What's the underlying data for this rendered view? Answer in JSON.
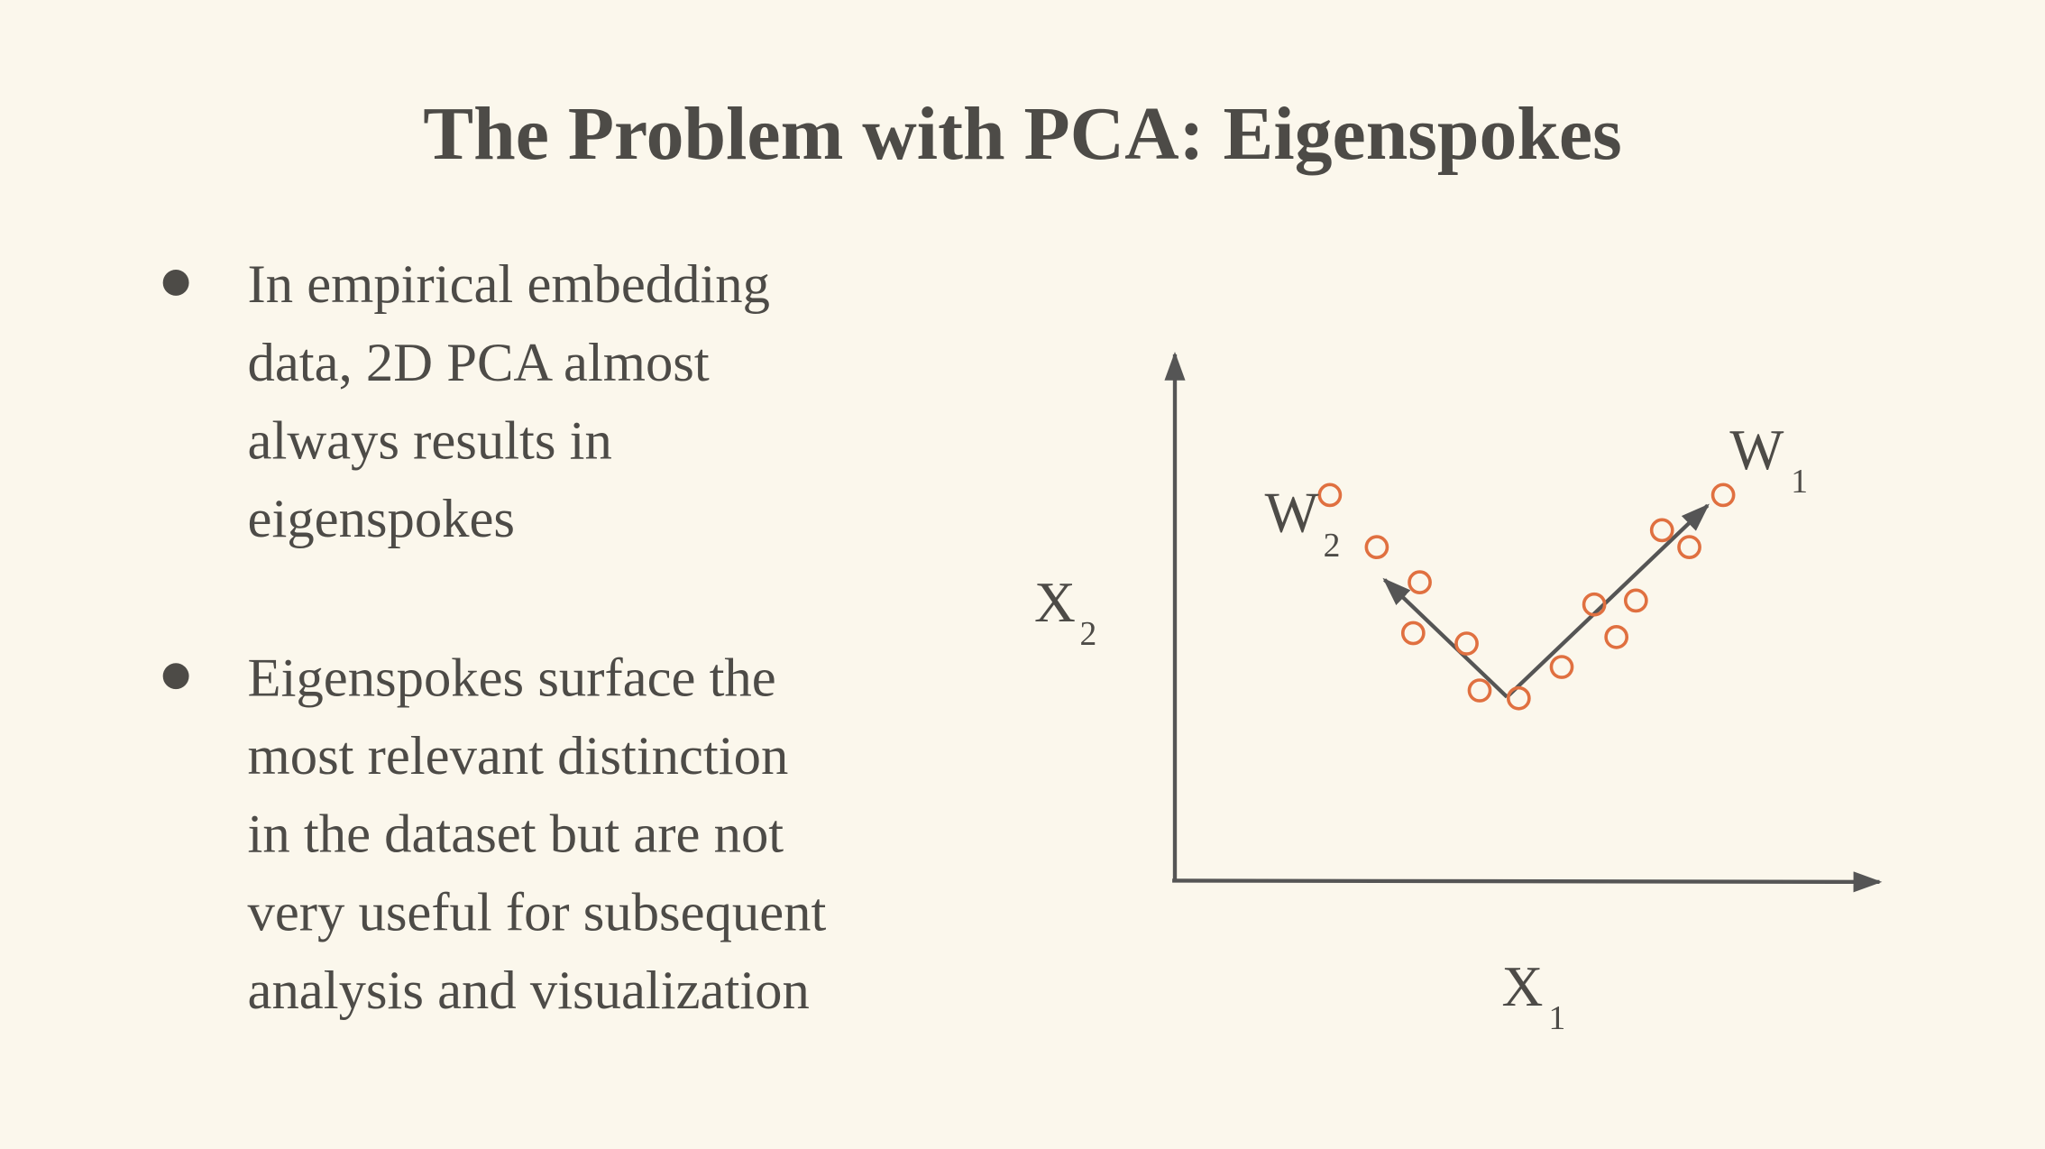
{
  "title": "The Problem with PCA: Eigenspokes",
  "bullets": [
    [
      "In empirical embedding",
      "data, 2D PCA almost",
      "always results in",
      "eigenspokes"
    ],
    [
      "Eigenspokes surface the",
      "most relevant distinction",
      "in the dataset but are not",
      "very useful for subsequent",
      "analysis and visualization"
    ]
  ],
  "diagram": {
    "x_label": {
      "main": "X",
      "sub": "1"
    },
    "y_label": {
      "main": "X",
      "sub": "2"
    },
    "w1_label": {
      "main": "W",
      "sub": "1"
    },
    "w2_label": {
      "main": "W",
      "sub": "2"
    }
  }
}
